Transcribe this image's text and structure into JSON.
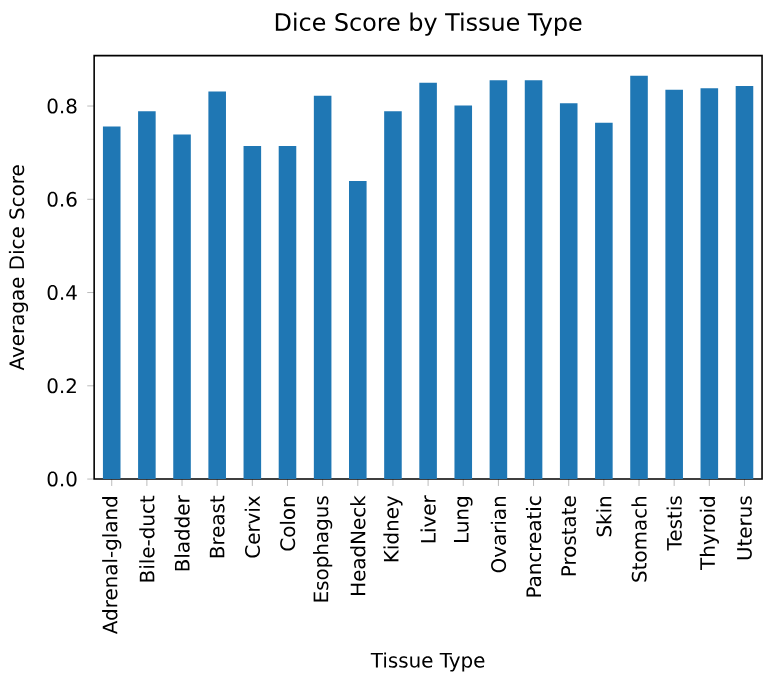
{
  "chart_data": {
    "type": "bar",
    "title": "Dice Score by Tissue Type",
    "xlabel": "Tissue Type",
    "ylabel": "Averagae Dice Score",
    "categories": [
      "Adrenal-gland",
      "Bile-duct",
      "Bladder",
      "Breast",
      "Cervix",
      "Colon",
      "Esophagus",
      "HeadNeck",
      "Kidney",
      "Liver",
      "Lung",
      "Ovarian",
      "Pancreatic",
      "Prostate",
      "Skin",
      "Stomach",
      "Testis",
      "Thyroid",
      "Uterus"
    ],
    "values": [
      0.756,
      0.789,
      0.739,
      0.831,
      0.714,
      0.714,
      0.822,
      0.639,
      0.789,
      0.85,
      0.801,
      0.855,
      0.855,
      0.806,
      0.764,
      0.865,
      0.835,
      0.838,
      0.843
    ],
    "color": "#1f77b4",
    "ylim": [
      0,
      0.908
    ],
    "yticks": [
      {
        "value": 0,
        "label": "0.0"
      },
      0.2,
      0.4,
      0.6,
      0.8
    ],
    "grid": false
  }
}
